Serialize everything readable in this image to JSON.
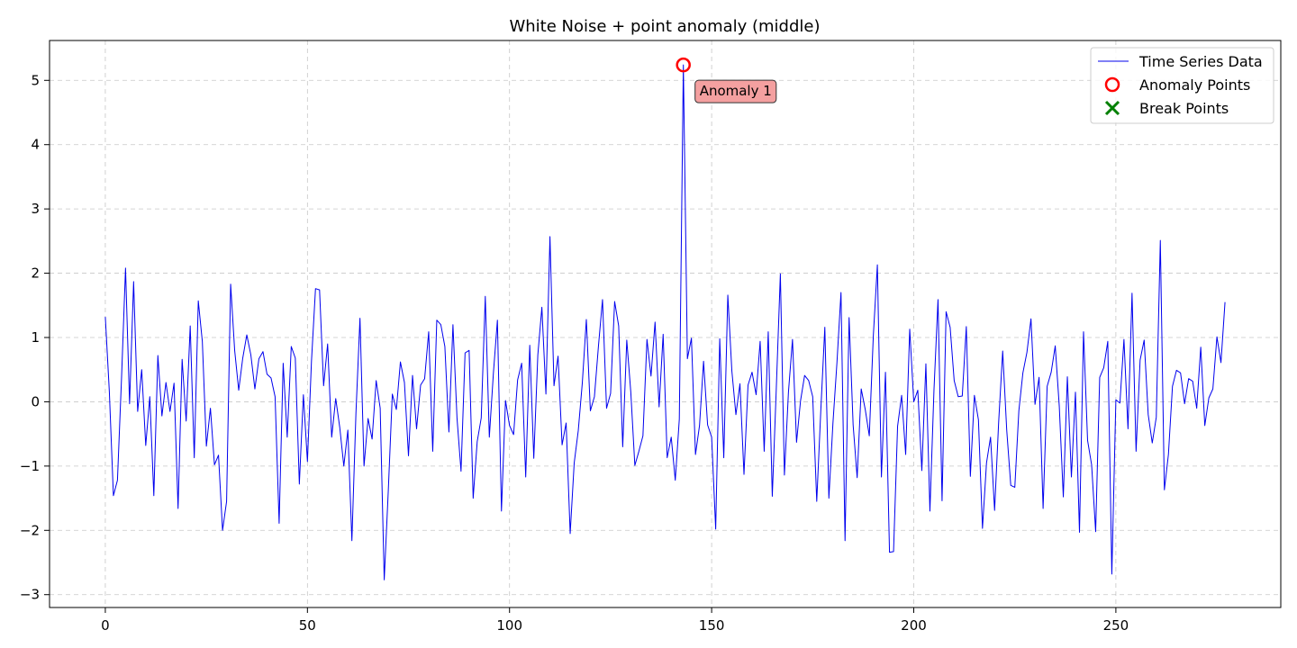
{
  "chart_data": {
    "type": "line",
    "title": "White Noise + point anomaly (middle)",
    "xlabel": "",
    "ylabel": "",
    "xlim": [
      -13.8,
      290.8
    ],
    "ylim": [
      -3.2,
      5.62
    ],
    "xticks": [
      0,
      50,
      100,
      150,
      200,
      250
    ],
    "yticks": [
      -3,
      -2,
      -1,
      0,
      1,
      2,
      3,
      4,
      5
    ],
    "grid": true,
    "legend_position": "top-right",
    "colors": {
      "series": "#0000ee",
      "anomaly": "#ff0000",
      "break": "#008000",
      "annotation_fill": "#f4a0a0"
    },
    "legend": [
      {
        "label": "Time Series Data",
        "marker": "line"
      },
      {
        "label": "Anomaly Points",
        "marker": "circle"
      },
      {
        "label": "Break Points",
        "marker": "x"
      }
    ],
    "series": [
      {
        "name": "Time Series Data",
        "x_start": 0,
        "x_step": 1,
        "values": [
          1.32,
          0.15,
          -1.46,
          -1.22,
          0.35,
          2.08,
          -0.03,
          1.87,
          -0.15,
          0.5,
          -0.68,
          0.08,
          -1.46,
          0.72,
          -0.22,
          0.3,
          -0.15,
          0.29,
          -1.66,
          0.66,
          -0.3,
          1.18,
          -0.87,
          1.57,
          0.94,
          -0.69,
          -0.1,
          -0.98,
          -0.83,
          -2.0,
          -1.55,
          1.83,
          0.8,
          0.18,
          0.68,
          1.04,
          0.73,
          0.2,
          0.67,
          0.78,
          0.43,
          0.37,
          0.08,
          -1.89,
          0.6,
          -0.55,
          0.86,
          0.68,
          -1.28,
          0.11,
          -0.93,
          0.63,
          1.76,
          1.74,
          0.25,
          0.9,
          -0.55,
          0.05,
          -0.4,
          -1.0,
          -0.44,
          -2.16,
          -0.18,
          1.3,
          -1.0,
          -0.26,
          -0.58,
          0.33,
          -0.1,
          -2.77,
          -1.39,
          0.12,
          -0.12,
          0.62,
          0.3,
          -0.84,
          0.41,
          -0.42,
          0.26,
          0.36,
          1.09,
          -0.77,
          1.27,
          1.2,
          0.86,
          -0.47,
          1.2,
          -0.25,
          -1.08,
          0.76,
          0.8,
          -1.5,
          -0.62,
          -0.25,
          1.64,
          -0.55,
          0.44,
          1.27,
          -1.7,
          0.02,
          -0.37,
          -0.51,
          0.34,
          0.6,
          -1.17,
          0.88,
          -0.88,
          0.73,
          1.47,
          0.12,
          2.57,
          0.25,
          0.71,
          -0.67,
          -0.33,
          -2.05,
          -0.95,
          -0.45,
          0.29,
          1.28,
          -0.14,
          0.08,
          0.87,
          1.59,
          -0.1,
          0.13,
          1.56,
          1.18,
          -0.7,
          0.96,
          0.15,
          -0.99,
          -0.77,
          -0.53,
          0.97,
          0.4,
          1.24,
          -0.08,
          1.05,
          -0.87,
          -0.55,
          -1.22,
          -0.27,
          5.24,
          0.67,
          0.99,
          -0.82,
          -0.37,
          0.63,
          -0.36,
          -0.55,
          -1.98,
          0.98,
          -0.87,
          1.66,
          0.48,
          -0.2,
          0.28,
          -1.13,
          0.26,
          0.46,
          0.11,
          0.94,
          -0.77,
          1.09,
          -1.47,
          0.22,
          1.99,
          -1.14,
          0.15,
          0.97,
          -0.63,
          0.02,
          0.41,
          0.33,
          0.08,
          -1.55,
          -0.14,
          1.16,
          -1.5,
          -0.34,
          0.61,
          1.7,
          -2.16,
          1.31,
          -0.36,
          -1.18,
          0.2,
          -0.12,
          -0.53,
          1.03,
          2.13,
          -1.17,
          0.46,
          -2.34,
          -2.33,
          -0.38,
          0.1,
          -0.82,
          1.13,
          0.0,
          0.18,
          -1.07,
          0.59,
          -1.7,
          0.18,
          1.59,
          -1.54,
          1.4,
          1.16,
          0.33,
          0.08,
          0.09,
          1.17,
          -1.16,
          0.1,
          -0.28,
          -1.97,
          -0.95,
          -0.55,
          -1.69,
          -0.32,
          0.79,
          -0.44,
          -1.3,
          -1.33,
          -0.14,
          0.45,
          0.77,
          1.29,
          -0.04,
          0.38,
          -1.66,
          0.24,
          0.46,
          0.87,
          -0.07,
          -1.48,
          0.39,
          -1.17,
          0.15,
          -2.03,
          1.09,
          -0.6,
          -0.98,
          -2.02,
          0.38,
          0.53,
          0.94,
          -2.68,
          0.03,
          -0.02,
          0.97,
          -0.42,
          1.69,
          -0.77,
          0.65,
          0.96,
          -0.2,
          -0.64,
          -0.24,
          2.51,
          -1.37,
          -0.82,
          0.24,
          0.49,
          0.45,
          -0.03,
          0.36,
          0.32,
          -0.1,
          0.85,
          -0.37,
          0.06,
          0.2,
          1.01,
          0.61,
          1.55
        ]
      }
    ],
    "anomalies": [
      {
        "x": 143,
        "y": 5.24,
        "label": "Anomaly 1"
      }
    ],
    "breaks": []
  }
}
